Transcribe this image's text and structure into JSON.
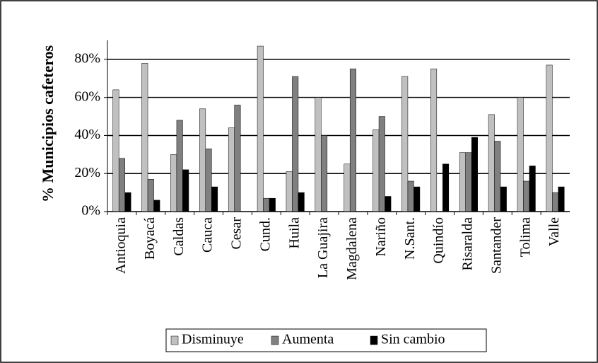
{
  "chart_data": {
    "type": "bar",
    "y_label": "% Municipios cafeteros",
    "categories": [
      "Antioquia",
      "Boyacá",
      "Caldas",
      "Cauca",
      "Cesar",
      "Cund.",
      "Huila",
      "La Guajira",
      "Magdalena",
      "Nariño",
      "N.Sant.",
      "Quindío",
      "Risaralda",
      "Santander",
      "Tolima",
      "Valle"
    ],
    "series": [
      {
        "name": "Disminuye",
        "color": "#c0c0c0",
        "values": [
          64,
          78,
          30,
          54,
          44,
          87,
          21,
          60,
          25,
          43,
          71,
          75,
          31,
          51,
          60,
          77
        ]
      },
      {
        "name": "Aumenta",
        "color": "#808080",
        "values": [
          28,
          17,
          48,
          33,
          56,
          7,
          71,
          40,
          75,
          50,
          16,
          0,
          31,
          37,
          16,
          10
        ]
      },
      {
        "name": "Sin cambio",
        "color": "#000000",
        "values": [
          10,
          6,
          22,
          13,
          0,
          7,
          10,
          0,
          0,
          8,
          13,
          25,
          39,
          13,
          24,
          13
        ]
      }
    ],
    "ylim": [
      0,
      90
    ],
    "yticks": [
      {
        "value": 0,
        "label": "0%"
      },
      {
        "value": 20,
        "label": "20%"
      },
      {
        "value": 40,
        "label": "40%"
      },
      {
        "value": 60,
        "label": "60%"
      },
      {
        "value": 80,
        "label": "80%"
      }
    ],
    "grid": true,
    "legend": "bottom"
  }
}
